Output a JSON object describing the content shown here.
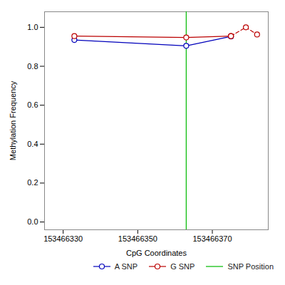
{
  "chart_data": {
    "type": "line",
    "xlabel": "CpG Coordinates",
    "ylabel": "Methylation Frequency",
    "series": [
      {
        "name": "A SNP",
        "color": "#0000bb",
        "marker": "circle",
        "line_style": "solid",
        "x": [
          153466333,
          153466363,
          153466375
        ],
        "values": [
          0.935,
          0.905,
          0.953
        ]
      },
      {
        "name": "G SNP",
        "color": "#bb0000",
        "marker": "circle",
        "line_style": "solid",
        "x": [
          153466333,
          153466363,
          153466375
        ],
        "values": [
          0.955,
          0.948,
          0.955
        ]
      },
      {
        "name": "G SNP",
        "color": "#bb0000",
        "marker": "circle",
        "line_style": "dashed",
        "x": [
          153466375,
          153466379,
          153466382
        ],
        "values": [
          0.955,
          1.0,
          0.963
        ]
      },
      {
        "name": "SNP Position",
        "type": "vline",
        "color": "#00bb00",
        "line_style": "solid",
        "x": [
          153466363
        ]
      }
    ],
    "xlim": [
      153466325,
      153466385
    ],
    "ylim": [
      -0.04,
      1.08
    ],
    "xticks": [
      153466330,
      153466350,
      153466370
    ],
    "yticks": [
      {
        "value": 0,
        "label": "0.0"
      },
      0.2,
      0.4,
      0.6,
      0.8,
      {
        "value": 1,
        "label": "1.0"
      }
    ],
    "grid": false,
    "legend": "lower right"
  }
}
